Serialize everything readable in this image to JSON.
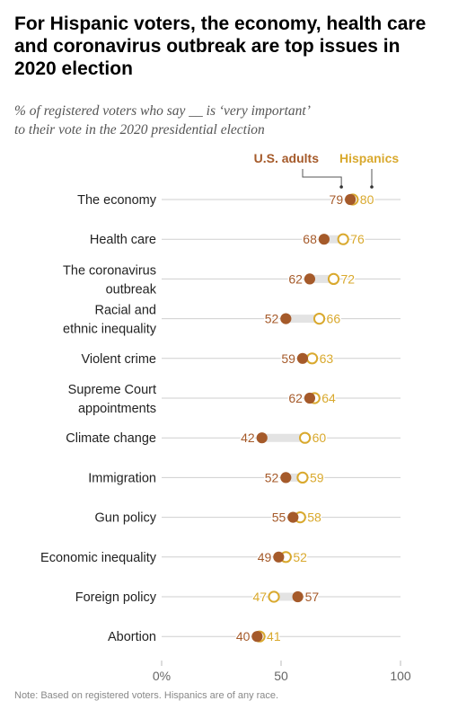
{
  "title": "For Hispanic voters, the economy, health care and coronavirus outbreak are top issues in 2020 election",
  "subtitle_line1": "% of registered voters who say __ is ‘very important’",
  "subtitle_line2": "to their vote in the 2020 presidential election",
  "footnote": "Note: Based on registered voters. Hispanics are of any race.",
  "colors": {
    "us_adults": "#a55a2a",
    "hispanics": "#d9a92e",
    "row_line": "#cfcfcf",
    "bar": "#e3e3e3"
  },
  "chart_data": {
    "type": "dot",
    "title": "For Hispanic voters, the economy, health care and coronavirus outbreak are top issues in 2020 election",
    "xlim": [
      0,
      100
    ],
    "x_ticks": [
      "0%",
      "50",
      "100"
    ],
    "series": [
      {
        "name": "U.S. adults",
        "marker": "filled"
      },
      {
        "name": "Hispanics",
        "marker": "open"
      }
    ],
    "categories": [
      [
        "The economy"
      ],
      [
        "Health care"
      ],
      [
        "The coronavirus",
        "outbreak"
      ],
      [
        "Racial and",
        "ethnic inequality"
      ],
      [
        "Violent crime"
      ],
      [
        "Supreme Court",
        "appointments"
      ],
      [
        "Climate change"
      ],
      [
        "Immigration"
      ],
      [
        "Gun policy"
      ],
      [
        "Economic inequality"
      ],
      [
        "Foreign policy"
      ],
      [
        "Abortion"
      ]
    ],
    "us_adults": [
      79,
      68,
      62,
      52,
      59,
      62,
      42,
      52,
      55,
      49,
      57,
      40
    ],
    "hispanics": [
      80,
      76,
      72,
      66,
      63,
      64,
      60,
      59,
      58,
      52,
      47,
      41
    ]
  }
}
